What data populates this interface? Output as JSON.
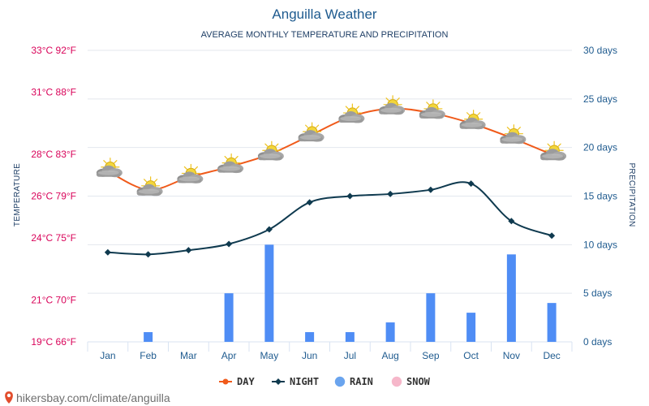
{
  "chart_data": {
    "type": "line",
    "title": "Anguilla Weather",
    "subtitle": "AVERAGE MONTHLY TEMPERATURE AND PRECIPITATION",
    "ylabel_left": "TEMPERATURE",
    "ylabel_right": "PRECIPITATION",
    "categories": [
      "Jan",
      "Feb",
      "Mar",
      "Apr",
      "May",
      "Jun",
      "Jul",
      "Aug",
      "Sep",
      "Oct",
      "Nov",
      "Dec"
    ],
    "left_axis": {
      "unit": "°C",
      "ylim": [
        19,
        33
      ],
      "ticks": [
        {
          "value": 19,
          "label": "19°C 66°F"
        },
        {
          "value": 21,
          "label": "21°C 70°F"
        },
        {
          "value": 24,
          "label": "24°C 75°F"
        },
        {
          "value": 26,
          "label": "26°C 79°F"
        },
        {
          "value": 28,
          "label": "28°C 83°F"
        },
        {
          "value": 31,
          "label": "31°C 88°F"
        },
        {
          "value": 33,
          "label": "33°C 92°F"
        }
      ]
    },
    "right_axis": {
      "unit": "days",
      "ylim": [
        0,
        30
      ],
      "ticks": [
        {
          "value": 0,
          "label": "0 days"
        },
        {
          "value": 5,
          "label": "5 days"
        },
        {
          "value": 10,
          "label": "10 days"
        },
        {
          "value": 15,
          "label": "15 days"
        },
        {
          "value": 20,
          "label": "20 days"
        },
        {
          "value": 25,
          "label": "25 days"
        },
        {
          "value": 30,
          "label": "30 days"
        }
      ]
    },
    "series": [
      {
        "name": "DAY",
        "axis": "left",
        "color": "#f05a1a",
        "values": [
          27.2,
          26.3,
          26.9,
          27.4,
          28.0,
          28.9,
          29.8,
          30.2,
          30.0,
          29.5,
          28.8,
          28.0
        ]
      },
      {
        "name": "NIGHT",
        "axis": "left",
        "color": "#0f3a4f",
        "values": [
          23.3,
          23.2,
          23.4,
          23.7,
          24.4,
          25.7,
          26.0,
          26.1,
          26.3,
          26.6,
          24.8,
          24.1
        ]
      },
      {
        "name": "RAIN",
        "axis": "right",
        "type": "bar",
        "color": "#4f8df5",
        "values": [
          0,
          1,
          0,
          5,
          10,
          1,
          1,
          2,
          5,
          3,
          9,
          4
        ]
      },
      {
        "name": "SNOW",
        "axis": "right",
        "type": "bar",
        "color": "#f6a7c1",
        "values": [
          0,
          0,
          0,
          0,
          0,
          0,
          0,
          0,
          0,
          0,
          0,
          0
        ]
      }
    ],
    "weather_icons": [
      "partly-cloudy-icon",
      "partly-cloudy-icon",
      "partly-cloudy-icon",
      "partly-cloudy-icon",
      "partly-cloudy-icon",
      "partly-cloudy-icon",
      "partly-cloudy-icon",
      "partly-cloudy-icon",
      "partly-cloudy-icon",
      "partly-cloudy-icon",
      "partly-cloudy-icon",
      "partly-cloudy-icon"
    ],
    "legend": {
      "position": "bottom",
      "items": [
        {
          "label": "DAY",
          "color": "#f05a1a",
          "marker": "line-dot"
        },
        {
          "label": "NIGHT",
          "color": "#0f3a4f",
          "marker": "line-diamond"
        },
        {
          "label": "RAIN",
          "color": "#6aa4ee",
          "marker": "dot"
        },
        {
          "label": "SNOW",
          "color": "#f6b7ca",
          "marker": "dot"
        }
      ]
    },
    "grid": true,
    "source_text": "hikersbay.com/climate/anguilla"
  }
}
